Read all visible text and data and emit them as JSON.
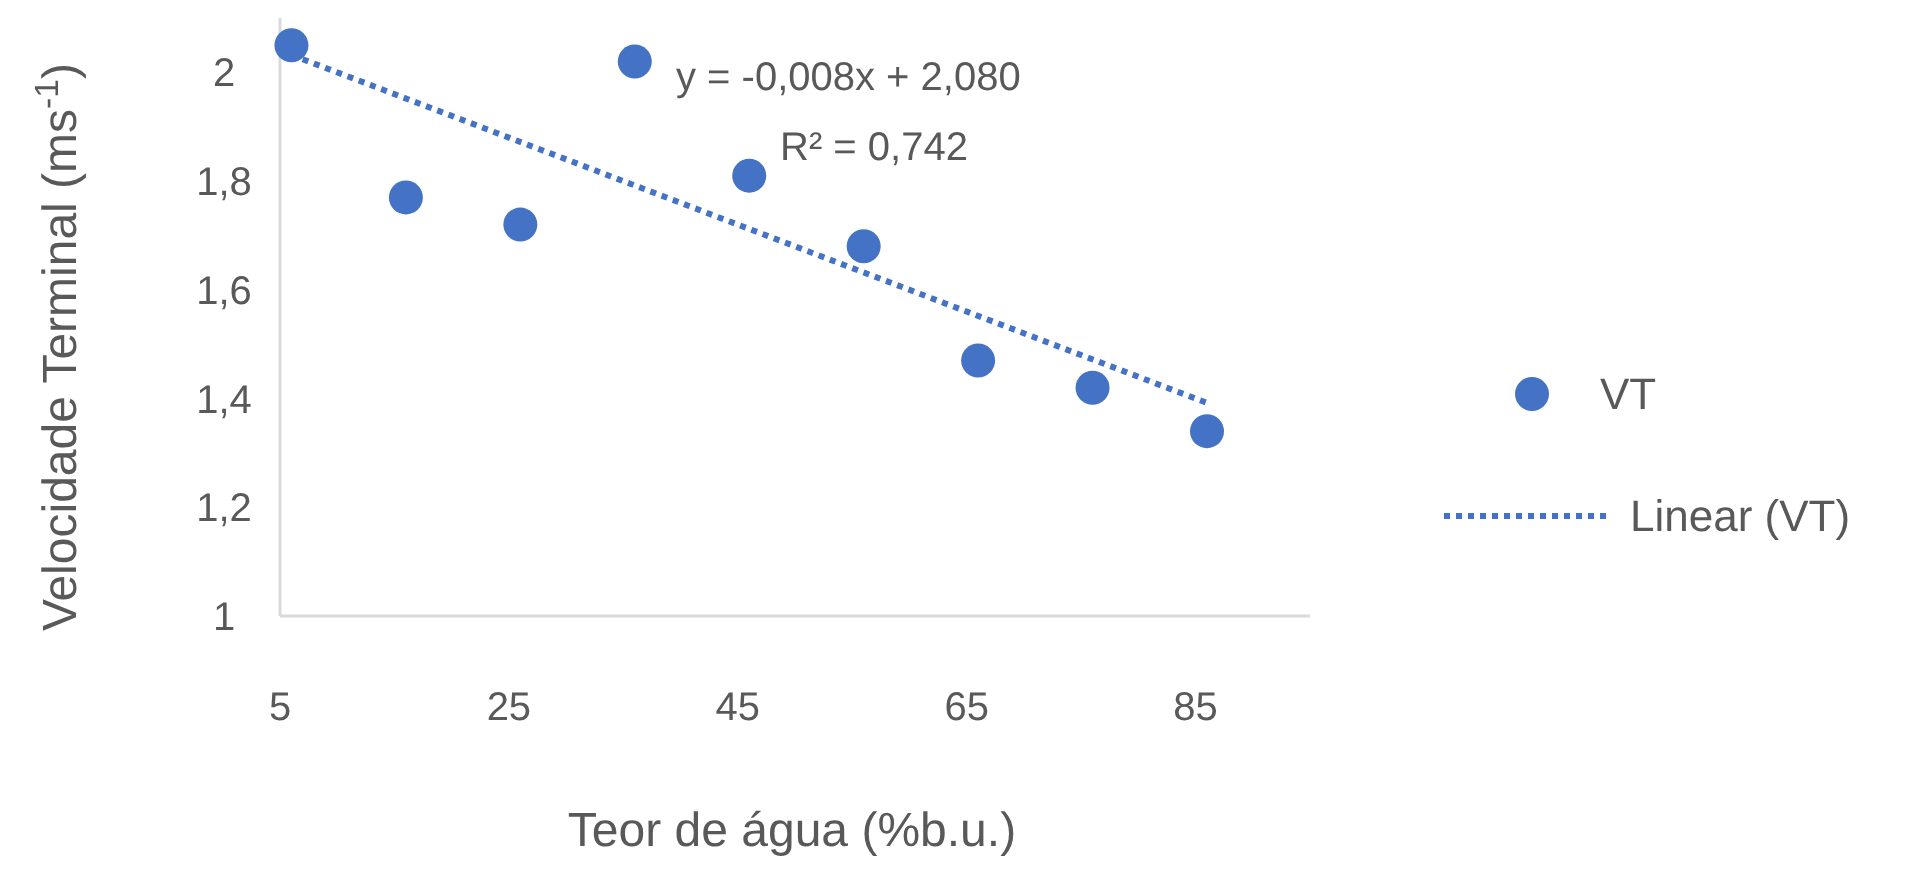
{
  "chart_data": {
    "type": "scatter",
    "xlabel": "Teor de água (%b.u.)",
    "ylabel": "Velocidade Terminal (ms$^{-1}$)",
    "xlim": [
      5,
      95
    ],
    "xticks": [
      5,
      25,
      45,
      65,
      85
    ],
    "ylim": [
      1,
      2.1
    ],
    "yticks": [
      1,
      {
        "value": 1.2,
        "label": "1,2"
      },
      {
        "value": 1.4,
        "label": "1,4"
      },
      {
        "value": 1.6,
        "label": "1,6"
      },
      {
        "value": 1.8,
        "label": "1,8"
      },
      2
    ],
    "grid": false,
    "legend": "right",
    "marker": "circle",
    "series": [
      {
        "name": "VT",
        "color": "#4472c4",
        "x": [
          6,
          16,
          26,
          36,
          46,
          56,
          66,
          76,
          86
        ],
        "values": [
          2.05,
          1.77,
          1.72,
          2.02,
          1.81,
          1.68,
          1.47,
          1.42,
          1.34
        ]
      },
      {
        "name": "Linear (VT)",
        "type": "line",
        "color": "#4472c4",
        "line_style": "dotted",
        "marker": "none",
        "x": [
          6,
          86
        ],
        "values": [
          2.032,
          1.392
        ]
      }
    ],
    "annotations": [
      "y = -0,008x + 2,080",
      "R² = 0,742"
    ]
  }
}
